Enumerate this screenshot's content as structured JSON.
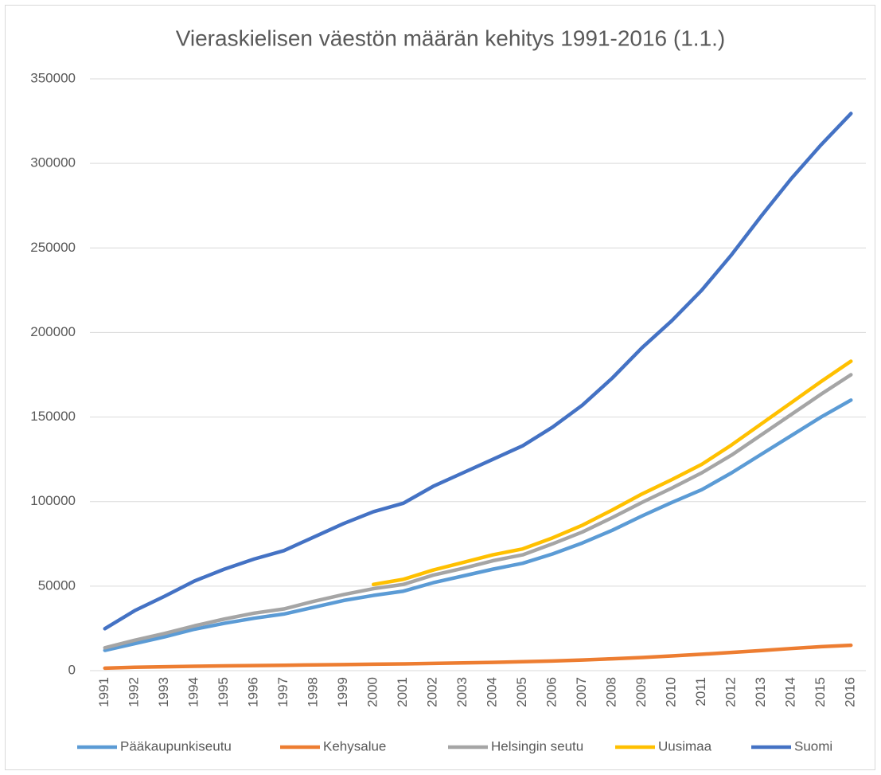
{
  "chart_data": {
    "type": "line",
    "title": "Vieraskielisen väestön määrän kehitys 1991-2016 (1.1.)",
    "categories": [
      "1991",
      "1992",
      "1993",
      "1994",
      "1995",
      "1996",
      "1997",
      "1998",
      "1999",
      "2000",
      "2001",
      "2002",
      "2003",
      "2004",
      "2005",
      "2006",
      "2007",
      "2008",
      "2009",
      "2010",
      "2011",
      "2012",
      "2013",
      "2014",
      "2015",
      "2016"
    ],
    "series": [
      {
        "name": "Pääkaupunkiseutu",
        "color": "#5b9bd5",
        "values": [
          12000,
          16000,
          20000,
          24500,
          28000,
          31000,
          33500,
          37500,
          41500,
          44500,
          47000,
          52000,
          56000,
          60000,
          63500,
          69000,
          75500,
          83000,
          91500,
          99500,
          107000,
          117000,
          128000,
          139000,
          150000,
          160000
        ]
      },
      {
        "name": "Kehysalue",
        "color": "#ed7d31",
        "values": [
          1500,
          2000,
          2300,
          2600,
          2800,
          3000,
          3200,
          3400,
          3600,
          3800,
          4000,
          4300,
          4600,
          4900,
          5300,
          5700,
          6300,
          7000,
          7800,
          8700,
          9700,
          10800,
          11900,
          13100,
          14200,
          15000
        ]
      },
      {
        "name": "Helsingin seutu",
        "color": "#a5a5a5",
        "values": [
          13500,
          18000,
          22000,
          26500,
          30500,
          34000,
          36500,
          41000,
          45000,
          48500,
          51000,
          56500,
          60500,
          65000,
          68500,
          75000,
          82000,
          90500,
          99500,
          108000,
          117000,
          127500,
          139500,
          151500,
          163500,
          175000
        ]
      },
      {
        "name": "Uusimaa",
        "color": "#ffc000",
        "values": [
          null,
          null,
          null,
          null,
          null,
          null,
          null,
          null,
          null,
          51000,
          54000,
          59500,
          64000,
          68500,
          72000,
          78500,
          86000,
          95000,
          104500,
          113000,
          122000,
          133500,
          146000,
          158500,
          171000,
          183000
        ]
      },
      {
        "name": "Suomi",
        "color": "#4472c4",
        "values": [
          24800,
          35500,
          44000,
          53000,
          60000,
          66000,
          71000,
          79000,
          87000,
          94000,
          99000,
          109000,
          117000,
          125000,
          133000,
          144000,
          157000,
          173000,
          191000,
          207000,
          225000,
          246000,
          269000,
          291000,
          311000,
          329500
        ]
      }
    ],
    "ylim": [
      0,
      350000
    ],
    "yticks": [
      0,
      50000,
      100000,
      150000,
      200000,
      250000,
      300000,
      350000
    ],
    "grid": true,
    "legend": "bottom"
  }
}
